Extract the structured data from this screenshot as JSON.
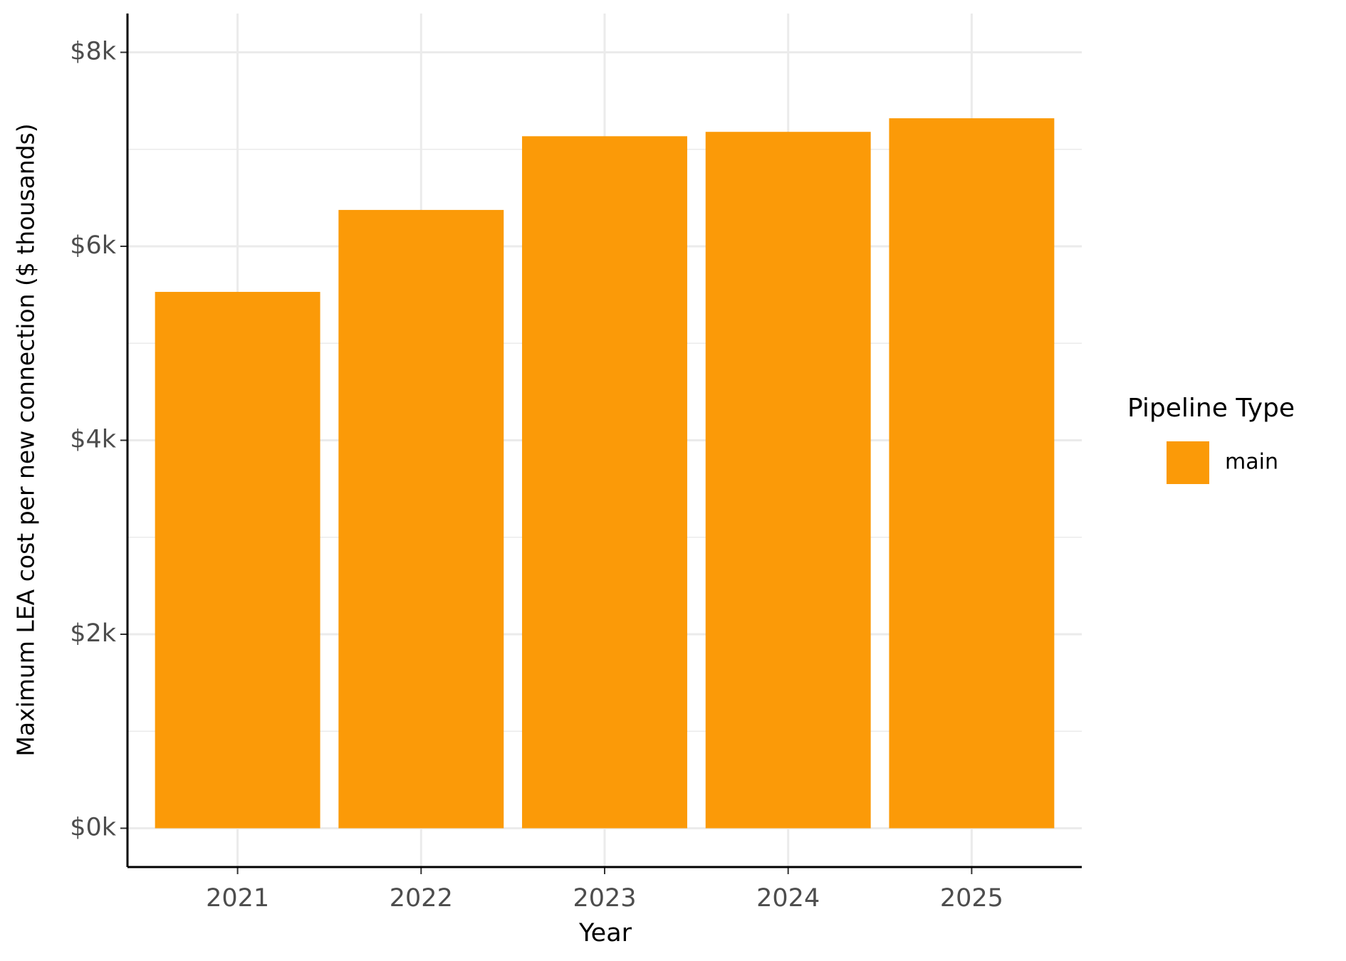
{
  "chart_data": {
    "type": "bar",
    "x_label": "Year",
    "y_label": "Maximum LEA cost per new connection ($ thousands)",
    "categories": [
      "2021",
      "2022",
      "2023",
      "2024",
      "2025"
    ],
    "series": [
      {
        "name": "main",
        "color": "#fb9a08",
        "values": [
          5530,
          6375,
          7135,
          7180,
          7320
        ]
      }
    ],
    "legend_title": "Pipeline Type",
    "legend": "right",
    "ylim": [
      -400,
      8400
    ],
    "yticks": [
      {
        "value": 0,
        "label": "$0k"
      },
      {
        "value": 2000,
        "label": "$2k"
      },
      {
        "value": 4000,
        "label": "$4k"
      },
      {
        "value": 6000,
        "label": "$6k"
      },
      {
        "value": 8000,
        "label": "$8k"
      }
    ],
    "yminorticks": [
      1000,
      3000,
      5000,
      7000
    ],
    "grid": true
  }
}
